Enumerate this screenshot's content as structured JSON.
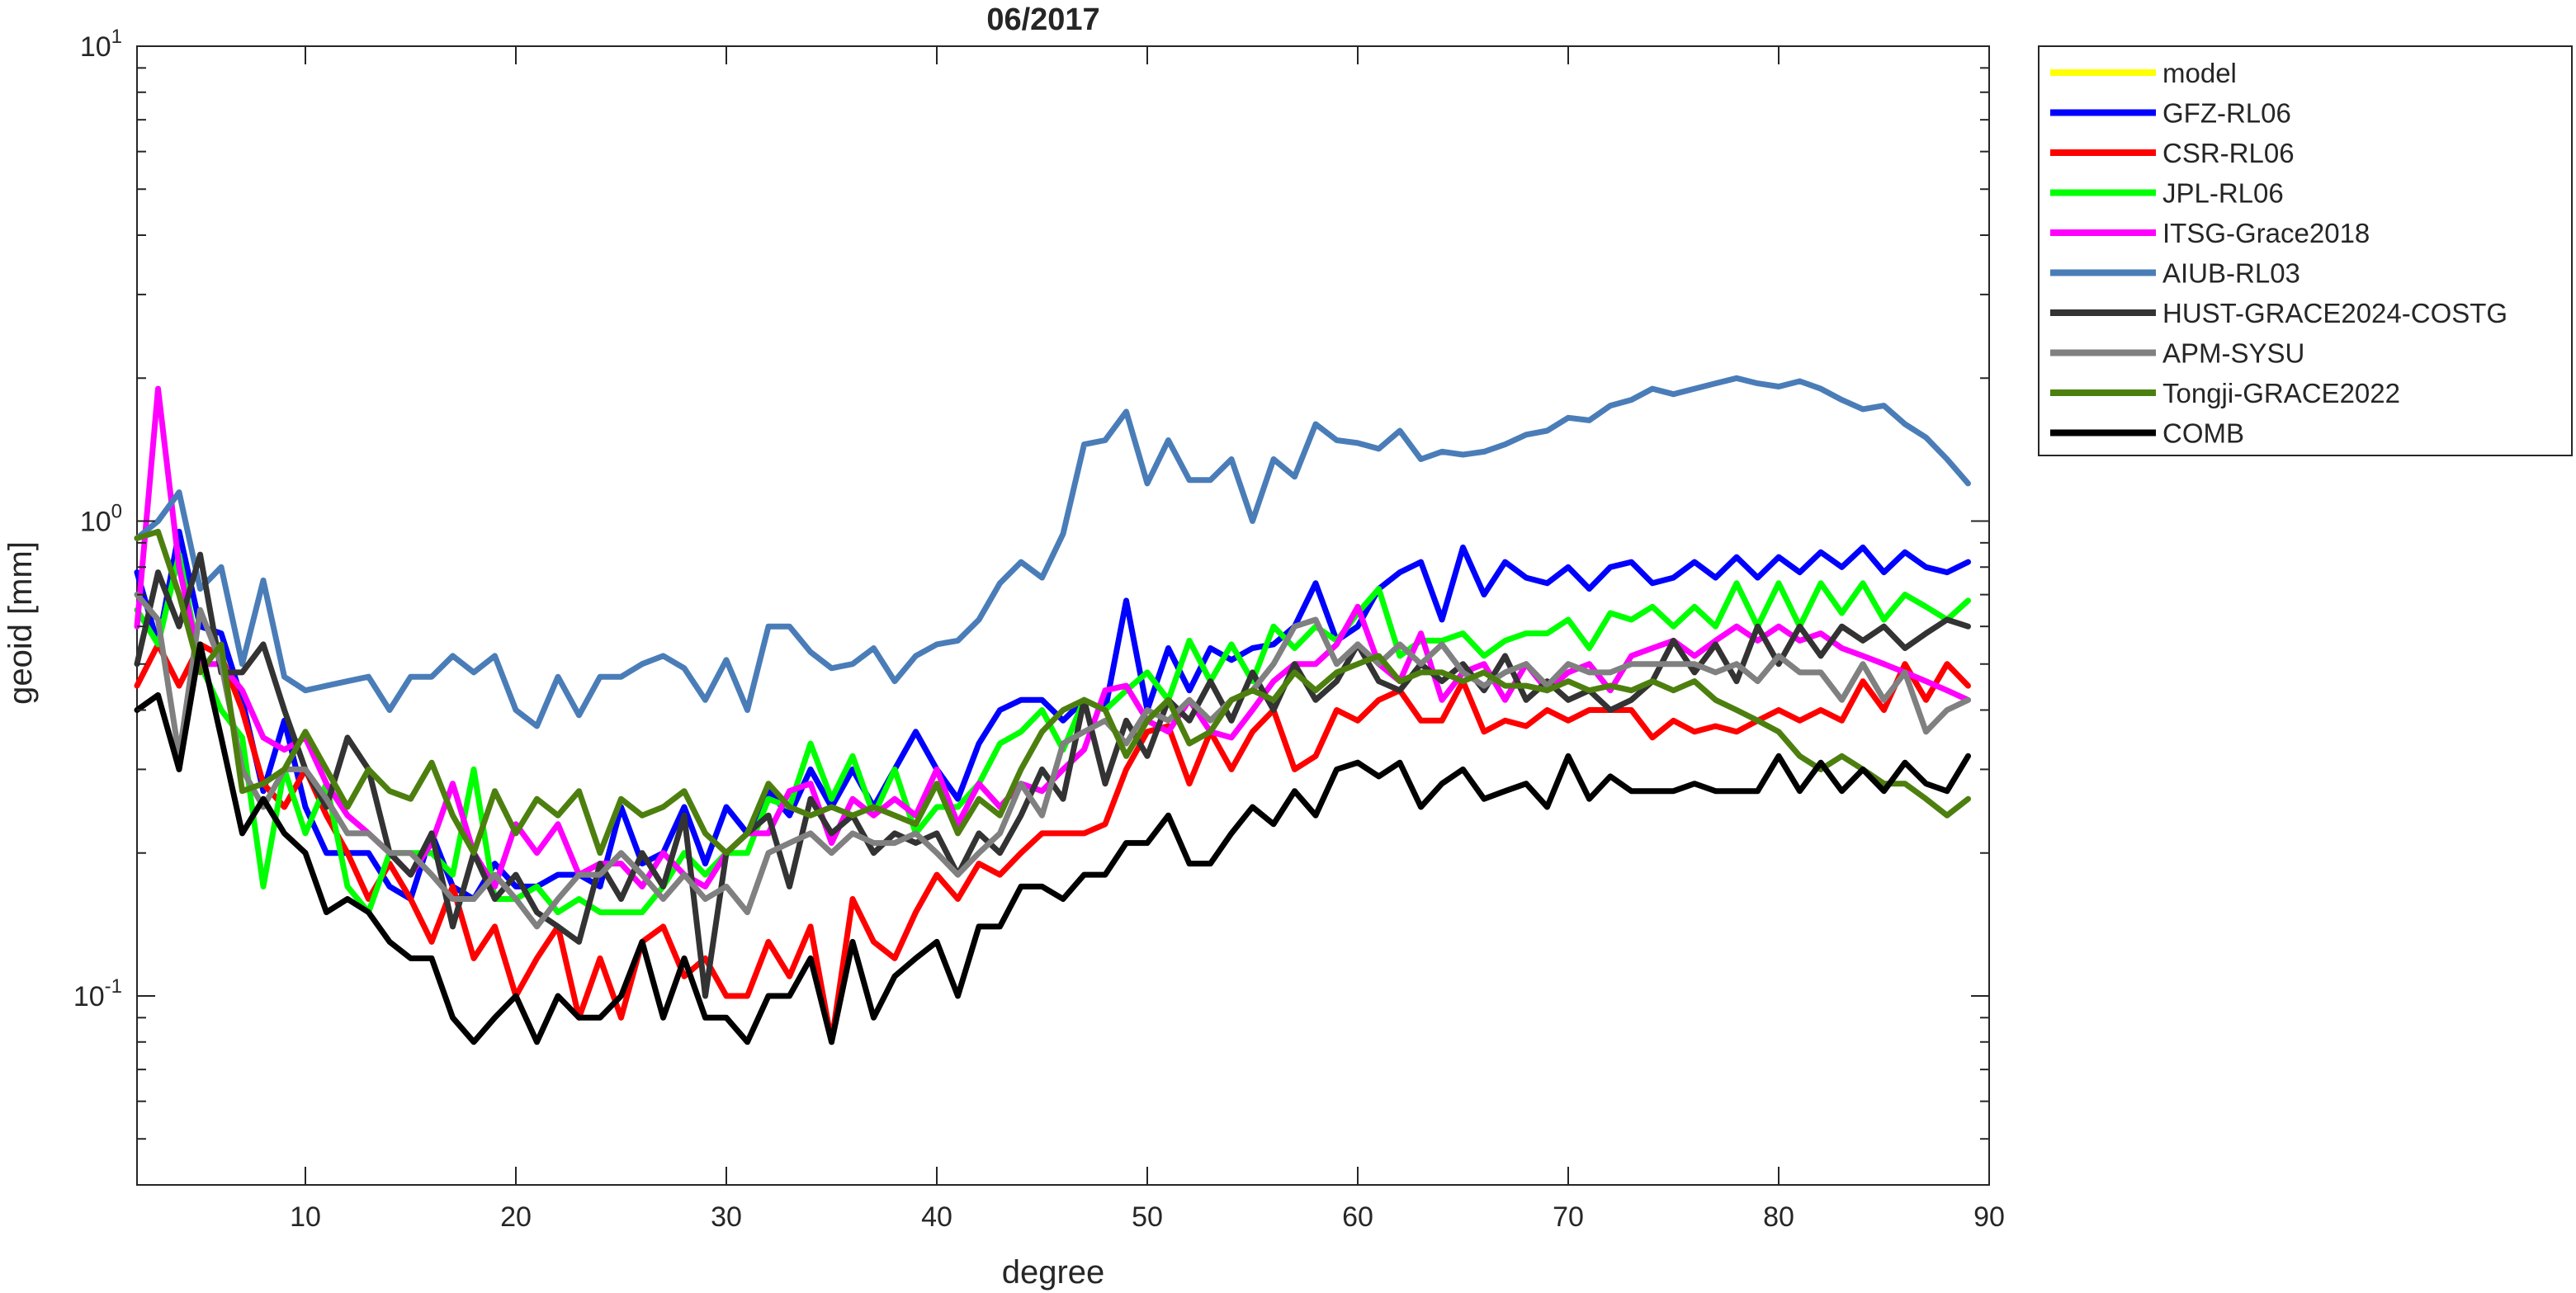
{
  "chart_data": {
    "type": "line",
    "title": "06/2017",
    "xlabel": "degree",
    "ylabel": "geoid [mm]",
    "xlim": [
      2,
      90
    ],
    "ylim": [
      0.04,
      10
    ],
    "yscale": "log",
    "grid": false,
    "legend_position": "outside-right",
    "x_ticks": [
      10,
      20,
      30,
      40,
      50,
      60,
      70,
      80,
      90
    ],
    "x_tick_labels": [
      "10",
      "20",
      "30",
      "40",
      "50",
      "60",
      "70",
      "80",
      "90"
    ],
    "y_ticks": [
      {
        "value": 0.1,
        "base": "10",
        "exp": "-1"
      },
      {
        "value": 1,
        "base": "10",
        "exp": "0"
      },
      {
        "value": 10,
        "base": "10",
        "exp": "1"
      }
    ],
    "x_start": 2,
    "series": [
      {
        "name": "model",
        "color": "#ffff00",
        "values": []
      },
      {
        "name": "GFZ-RL06",
        "color": "#0000ff",
        "values": [
          0.78,
          0.55,
          0.95,
          0.6,
          0.58,
          0.42,
          0.27,
          0.38,
          0.25,
          0.2,
          0.2,
          0.2,
          0.17,
          0.16,
          0.22,
          0.17,
          0.16,
          0.19,
          0.17,
          0.17,
          0.18,
          0.18,
          0.17,
          0.25,
          0.19,
          0.2,
          0.25,
          0.19,
          0.25,
          0.22,
          0.27,
          0.24,
          0.3,
          0.25,
          0.3,
          0.25,
          0.3,
          0.36,
          0.3,
          0.26,
          0.34,
          0.4,
          0.42,
          0.42,
          0.38,
          0.42,
          0.4,
          0.68,
          0.4,
          0.54,
          0.44,
          0.54,
          0.51,
          0.54,
          0.55,
          0.6,
          0.74,
          0.56,
          0.6,
          0.72,
          0.78,
          0.82,
          0.62,
          0.88,
          0.7,
          0.82,
          0.76,
          0.74,
          0.8,
          0.72,
          0.8,
          0.82,
          0.74,
          0.76,
          0.82,
          0.76,
          0.84,
          0.76,
          0.84,
          0.78,
          0.86,
          0.8,
          0.88,
          0.78,
          0.86,
          0.8,
          0.78,
          0.82
        ]
      },
      {
        "name": "CSR-RL06",
        "color": "#ff0000",
        "values": [
          0.45,
          0.55,
          0.45,
          0.55,
          0.52,
          0.4,
          0.28,
          0.25,
          0.3,
          0.24,
          0.2,
          0.16,
          0.19,
          0.16,
          0.13,
          0.17,
          0.12,
          0.14,
          0.1,
          0.12,
          0.14,
          0.09,
          0.12,
          0.09,
          0.13,
          0.14,
          0.11,
          0.12,
          0.1,
          0.1,
          0.13,
          0.11,
          0.14,
          0.08,
          0.16,
          0.13,
          0.12,
          0.15,
          0.18,
          0.16,
          0.19,
          0.18,
          0.2,
          0.22,
          0.22,
          0.22,
          0.23,
          0.3,
          0.36,
          0.37,
          0.28,
          0.36,
          0.3,
          0.36,
          0.4,
          0.3,
          0.32,
          0.4,
          0.38,
          0.42,
          0.44,
          0.38,
          0.38,
          0.46,
          0.36,
          0.38,
          0.37,
          0.4,
          0.38,
          0.4,
          0.4,
          0.4,
          0.35,
          0.38,
          0.36,
          0.37,
          0.36,
          0.38,
          0.4,
          0.38,
          0.4,
          0.38,
          0.46,
          0.4,
          0.5,
          0.42,
          0.5,
          0.45
        ]
      },
      {
        "name": "JPL-RL06",
        "color": "#00ff00",
        "values": [
          0.65,
          0.55,
          0.85,
          0.5,
          0.4,
          0.35,
          0.17,
          0.3,
          0.22,
          0.28,
          0.17,
          0.15,
          0.2,
          0.2,
          0.2,
          0.18,
          0.3,
          0.16,
          0.16,
          0.17,
          0.15,
          0.16,
          0.15,
          0.15,
          0.15,
          0.17,
          0.2,
          0.18,
          0.2,
          0.2,
          0.26,
          0.25,
          0.34,
          0.26,
          0.32,
          0.24,
          0.3,
          0.22,
          0.25,
          0.25,
          0.28,
          0.34,
          0.36,
          0.4,
          0.33,
          0.42,
          0.4,
          0.44,
          0.48,
          0.42,
          0.56,
          0.46,
          0.55,
          0.46,
          0.6,
          0.54,
          0.6,
          0.56,
          0.64,
          0.72,
          0.52,
          0.56,
          0.56,
          0.58,
          0.52,
          0.56,
          0.58,
          0.58,
          0.62,
          0.54,
          0.64,
          0.62,
          0.66,
          0.6,
          0.66,
          0.6,
          0.74,
          0.6,
          0.74,
          0.6,
          0.74,
          0.64,
          0.74,
          0.62,
          0.7,
          0.66,
          0.62,
          0.68
        ]
      },
      {
        "name": "ITSG-Grace2018",
        "color": "#ff00ff",
        "values": [
          0.6,
          1.9,
          0.8,
          0.5,
          0.5,
          0.44,
          0.35,
          0.33,
          0.35,
          0.28,
          0.24,
          0.22,
          0.2,
          0.18,
          0.21,
          0.28,
          0.2,
          0.17,
          0.23,
          0.2,
          0.23,
          0.18,
          0.19,
          0.19,
          0.17,
          0.2,
          0.18,
          0.17,
          0.2,
          0.22,
          0.22,
          0.27,
          0.28,
          0.21,
          0.26,
          0.24,
          0.26,
          0.24,
          0.3,
          0.23,
          0.28,
          0.25,
          0.28,
          0.27,
          0.3,
          0.33,
          0.44,
          0.45,
          0.38,
          0.36,
          0.42,
          0.36,
          0.35,
          0.4,
          0.46,
          0.5,
          0.5,
          0.55,
          0.66,
          0.5,
          0.46,
          0.58,
          0.42,
          0.48,
          0.5,
          0.42,
          0.5,
          0.44,
          0.48,
          0.5,
          0.44,
          0.52,
          0.54,
          0.56,
          0.52,
          0.56,
          0.6,
          0.56,
          0.6,
          0.56,
          0.58,
          0.54,
          0.52,
          0.5,
          0.48,
          0.46,
          0.44,
          0.42
        ]
      },
      {
        "name": "AIUB-RL03",
        "color": "#4a7db8",
        "values": [
          0.92,
          1.0,
          1.15,
          0.72,
          0.8,
          0.5,
          0.75,
          0.47,
          0.44,
          0.45,
          0.46,
          0.47,
          0.4,
          0.47,
          0.47,
          0.52,
          0.48,
          0.52,
          0.4,
          0.37,
          0.47,
          0.39,
          0.47,
          0.47,
          0.5,
          0.52,
          0.49,
          0.42,
          0.51,
          0.4,
          0.6,
          0.6,
          0.53,
          0.49,
          0.5,
          0.54,
          0.46,
          0.52,
          0.55,
          0.56,
          0.62,
          0.74,
          0.82,
          0.76,
          0.94,
          1.45,
          1.48,
          1.7,
          1.2,
          1.48,
          1.22,
          1.22,
          1.35,
          1.0,
          1.35,
          1.24,
          1.6,
          1.48,
          1.46,
          1.42,
          1.55,
          1.35,
          1.4,
          1.38,
          1.4,
          1.45,
          1.52,
          1.55,
          1.65,
          1.63,
          1.75,
          1.8,
          1.9,
          1.85,
          1.9,
          1.95,
          2.0,
          1.95,
          1.92,
          1.97,
          1.9,
          1.8,
          1.72,
          1.75,
          1.6,
          1.5,
          1.35,
          1.2
        ]
      },
      {
        "name": "HUST-GRACE2024-COSTG",
        "color": "#333333",
        "values": [
          0.5,
          0.78,
          0.6,
          0.85,
          0.48,
          0.48,
          0.55,
          0.4,
          0.3,
          0.25,
          0.35,
          0.3,
          0.2,
          0.18,
          0.22,
          0.14,
          0.2,
          0.16,
          0.18,
          0.15,
          0.14,
          0.13,
          0.19,
          0.16,
          0.2,
          0.17,
          0.24,
          0.1,
          0.2,
          0.22,
          0.24,
          0.17,
          0.26,
          0.22,
          0.24,
          0.2,
          0.22,
          0.21,
          0.22,
          0.18,
          0.22,
          0.2,
          0.24,
          0.3,
          0.26,
          0.42,
          0.28,
          0.38,
          0.32,
          0.42,
          0.38,
          0.46,
          0.38,
          0.48,
          0.4,
          0.5,
          0.42,
          0.46,
          0.55,
          0.46,
          0.44,
          0.5,
          0.46,
          0.5,
          0.44,
          0.52,
          0.42,
          0.46,
          0.42,
          0.44,
          0.4,
          0.42,
          0.46,
          0.56,
          0.48,
          0.55,
          0.46,
          0.6,
          0.5,
          0.6,
          0.52,
          0.6,
          0.56,
          0.6,
          0.54,
          0.58,
          0.62,
          0.6
        ]
      },
      {
        "name": "APM-SYSU",
        "color": "#808080",
        "values": [
          0.7,
          0.62,
          0.32,
          0.65,
          0.5,
          0.3,
          0.25,
          0.3,
          0.3,
          0.26,
          0.22,
          0.22,
          0.2,
          0.2,
          0.18,
          0.16,
          0.16,
          0.18,
          0.16,
          0.14,
          0.16,
          0.18,
          0.18,
          0.2,
          0.18,
          0.16,
          0.18,
          0.16,
          0.17,
          0.15,
          0.2,
          0.21,
          0.22,
          0.2,
          0.22,
          0.21,
          0.21,
          0.22,
          0.2,
          0.18,
          0.2,
          0.22,
          0.28,
          0.24,
          0.34,
          0.36,
          0.38,
          0.34,
          0.4,
          0.38,
          0.42,
          0.38,
          0.42,
          0.44,
          0.5,
          0.6,
          0.62,
          0.5,
          0.55,
          0.5,
          0.55,
          0.5,
          0.55,
          0.48,
          0.45,
          0.48,
          0.5,
          0.45,
          0.5,
          0.48,
          0.48,
          0.5,
          0.5,
          0.5,
          0.5,
          0.48,
          0.5,
          0.46,
          0.52,
          0.48,
          0.48,
          0.42,
          0.5,
          0.42,
          0.48,
          0.36,
          0.4,
          0.42
        ]
      },
      {
        "name": "Tongji-GRACE2022",
        "color": "#4d7f0f",
        "values": [
          0.92,
          0.95,
          0.7,
          0.48,
          0.55,
          0.27,
          0.28,
          0.3,
          0.36,
          0.3,
          0.25,
          0.3,
          0.27,
          0.26,
          0.31,
          0.24,
          0.2,
          0.27,
          0.22,
          0.26,
          0.24,
          0.27,
          0.2,
          0.26,
          0.24,
          0.25,
          0.27,
          0.22,
          0.2,
          0.22,
          0.28,
          0.25,
          0.24,
          0.25,
          0.24,
          0.25,
          0.24,
          0.23,
          0.28,
          0.22,
          0.26,
          0.24,
          0.3,
          0.36,
          0.4,
          0.42,
          0.4,
          0.32,
          0.38,
          0.42,
          0.34,
          0.36,
          0.42,
          0.44,
          0.42,
          0.48,
          0.44,
          0.48,
          0.5,
          0.52,
          0.46,
          0.48,
          0.48,
          0.46,
          0.48,
          0.45,
          0.45,
          0.44,
          0.46,
          0.44,
          0.45,
          0.44,
          0.46,
          0.44,
          0.46,
          0.42,
          0.4,
          0.38,
          0.36,
          0.32,
          0.3,
          0.32,
          0.3,
          0.28,
          0.28,
          0.26,
          0.24,
          0.26
        ]
      },
      {
        "name": "COMB",
        "color": "#000000",
        "values": [
          0.4,
          0.43,
          0.3,
          0.55,
          0.35,
          0.22,
          0.26,
          0.22,
          0.2,
          0.15,
          0.16,
          0.15,
          0.13,
          0.12,
          0.12,
          0.09,
          0.08,
          0.09,
          0.1,
          0.08,
          0.1,
          0.09,
          0.09,
          0.1,
          0.13,
          0.09,
          0.12,
          0.09,
          0.09,
          0.08,
          0.1,
          0.1,
          0.12,
          0.08,
          0.13,
          0.09,
          0.11,
          0.12,
          0.13,
          0.1,
          0.14,
          0.14,
          0.17,
          0.17,
          0.16,
          0.18,
          0.18,
          0.21,
          0.21,
          0.24,
          0.19,
          0.19,
          0.22,
          0.25,
          0.23,
          0.27,
          0.24,
          0.3,
          0.31,
          0.29,
          0.31,
          0.25,
          0.28,
          0.3,
          0.26,
          0.27,
          0.28,
          0.25,
          0.32,
          0.26,
          0.29,
          0.27,
          0.27,
          0.27,
          0.28,
          0.27,
          0.27,
          0.27,
          0.32,
          0.27,
          0.31,
          0.27,
          0.3,
          0.27,
          0.31,
          0.28,
          0.27,
          0.32
        ]
      }
    ]
  }
}
